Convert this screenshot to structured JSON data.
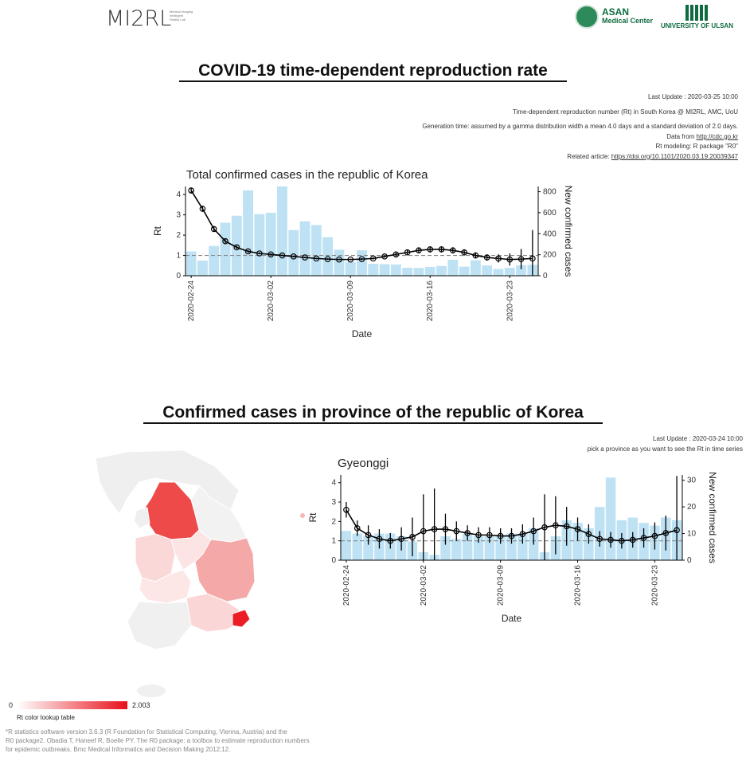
{
  "header": {
    "logo_left_text": "MI2RL",
    "logo_left_small": "Medical Imaging Intelligent Reality Lab",
    "asan_title": "ASAN",
    "asan_subtitle": "Medical Center",
    "ulsan_label": "UNIVERSITY OF ULSAN"
  },
  "section1": {
    "title": "COVID-19 time-dependent reproduction rate",
    "meta": {
      "last_update": "Last Update : 2020-03-25 10:00",
      "line2": "Time-dependent reproduction number (Rt) in South Korea @ MI2RL, AMC, UoU",
      "line3": "Generation time: assumed by a gamma distribution width a mean 4.0 days and a standard deviation of 2.0 days.",
      "data_from_label": "Data from ",
      "data_from_link": "http://cdc.go.kr",
      "line5": "Rt modeling: R package \"R0\"",
      "related_label": "Related article: ",
      "related_link": "https://doi.org/10.1101/2020.03.19.20039347"
    }
  },
  "section2": {
    "title": "Confirmed cases in province of the republic of Korea",
    "meta": {
      "last_update": "Last Update : 2020-03-24 10:00",
      "instruction": "pick a province as you want to see the Rt in time series"
    },
    "legend": {
      "min": "0",
      "max": "2.003",
      "caption": "Rt color lookup table",
      "min_color": "#ffffff",
      "max_color": "#e8101a"
    }
  },
  "footnote": {
    "line1": "*R statistics software version 3.6.3 (R Foundation for Statistical Computing, Vienna, Austria) and the",
    "line2": "R0 package2. Obadia T, Haneef R, Boelle PY. The R0 package: a toolbox to estimate reproduction numbers",
    "line3": "for epidemic outbreaks. Bmc Medical Informatics and Decision Making 2012;12."
  },
  "chart_data": [
    {
      "type": "bar+line",
      "title": "Total confirmed cases in the republic of Korea",
      "xlabel": "Date",
      "ylabel": "Rt",
      "y2label": "New confirmed cases",
      "x_ticks": [
        "2020-02-24",
        "2020-03-02",
        "2020-03-09",
        "2020-03-16",
        "2020-03-23"
      ],
      "ylim": [
        0,
        4.4
      ],
      "y2lim": [
        0,
        850
      ],
      "y_ticks": [
        0,
        1,
        2,
        3,
        4
      ],
      "y2_ticks": [
        0,
        200,
        400,
        600,
        800
      ],
      "reference_line": 1,
      "bar_color": "#a8d8f0",
      "x_start": "2020-02-24",
      "bars": [
        231,
        144,
        284,
        505,
        571,
        813,
        586,
        599,
        851,
        435,
        518,
        483,
        367,
        248,
        131,
        242,
        114,
        110,
        107,
        76,
        74,
        84,
        93,
        152,
        87,
        147,
        98,
        64,
        76,
        100,
        104
      ],
      "rt": [
        4.2,
        3.3,
        2.3,
        1.7,
        1.4,
        1.2,
        1.1,
        1.05,
        1.0,
        0.95,
        0.9,
        0.85,
        0.82,
        0.8,
        0.8,
        0.82,
        0.85,
        0.95,
        1.05,
        1.15,
        1.25,
        1.3,
        1.3,
        1.25,
        1.15,
        1.0,
        0.9,
        0.85,
        0.8,
        0.82,
        0.85
      ],
      "rt_err": [
        0.15,
        0.15,
        0.12,
        0.1,
        0.08,
        0.06,
        0.05,
        0.05,
        0.04,
        0.04,
        0.04,
        0.04,
        0.04,
        0.04,
        0.04,
        0.05,
        0.05,
        0.06,
        0.1,
        0.12,
        0.15,
        0.15,
        0.15,
        0.15,
        0.15,
        0.15,
        0.15,
        0.2,
        0.3,
        0.5,
        1.4
      ]
    },
    {
      "type": "bar+line",
      "title": "Gyeonggi",
      "xlabel": "Date",
      "ylabel": "Rt",
      "y2label": "New confirmed cases",
      "x_ticks": [
        "2020-02-24",
        "2020-03-02",
        "2020-03-09",
        "2020-03-16",
        "2020-03-23"
      ],
      "ylim": [
        0,
        4.4
      ],
      "y2lim": [
        0,
        32
      ],
      "y_ticks": [
        0,
        1,
        2,
        3,
        4
      ],
      "y2_ticks": [
        0,
        10,
        20,
        30
      ],
      "reference_line": 1,
      "bar_color": "#a8d8f0",
      "x_start": "2020-02-24",
      "bars": [
        11,
        10,
        9,
        10,
        10,
        9,
        7,
        3,
        2,
        9,
        8,
        10,
        9,
        9,
        9,
        10,
        10,
        12,
        3,
        9,
        15,
        14,
        12,
        20,
        31,
        15,
        16,
        14,
        13,
        16,
        15
      ],
      "rt": [
        2.6,
        1.65,
        1.3,
        1.1,
        1.0,
        1.1,
        1.2,
        1.5,
        1.6,
        1.6,
        1.5,
        1.4,
        1.3,
        1.3,
        1.25,
        1.25,
        1.35,
        1.5,
        1.7,
        1.8,
        1.75,
        1.6,
        1.35,
        1.1,
        1.05,
        1.0,
        1.05,
        1.15,
        1.25,
        1.4,
        1.55
      ],
      "rt_err": [
        0.4,
        0.4,
        0.5,
        0.5,
        0.4,
        0.6,
        1.0,
        1.9,
        2.1,
        0.8,
        0.5,
        0.4,
        0.4,
        0.4,
        0.4,
        0.4,
        0.5,
        0.7,
        1.7,
        1.5,
        1.0,
        0.6,
        0.5,
        0.4,
        0.4,
        0.4,
        0.4,
        0.5,
        0.7,
        0.9,
        2.8
      ]
    }
  ]
}
